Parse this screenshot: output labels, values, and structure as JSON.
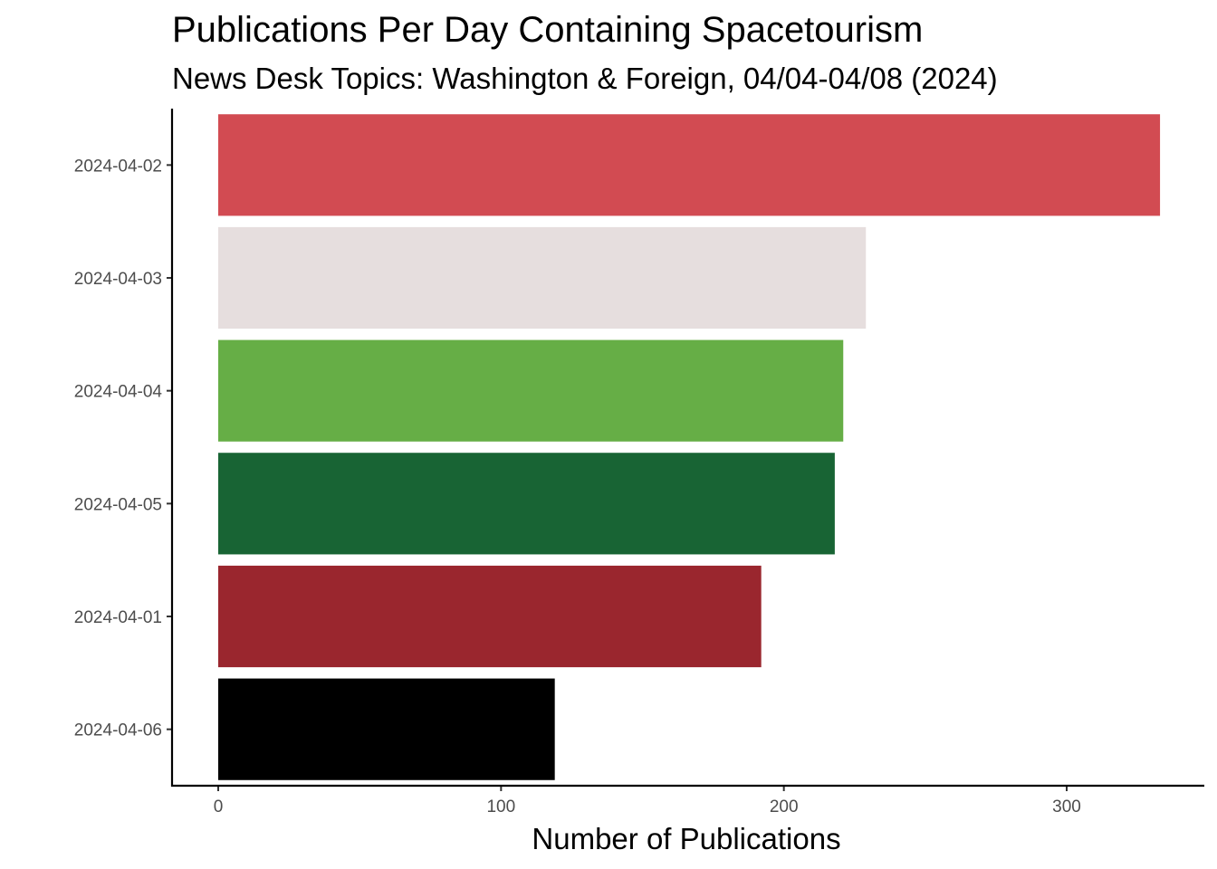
{
  "chart_data": {
    "type": "bar",
    "orientation": "horizontal",
    "title": "Publications Per Day Containing Spacetourism",
    "subtitle": "News Desk Topics: Washington & Foreign, 04/04-04/08 (2024)",
    "xlabel": "Number of Publications",
    "ylabel": "",
    "categories": [
      "2024-04-02",
      "2024-04-03",
      "2024-04-04",
      "2024-04-05",
      "2024-04-01",
      "2024-04-06"
    ],
    "values": [
      333,
      229,
      221,
      218,
      192,
      119
    ],
    "colors": [
      "#D24B52",
      "#E6DEDE",
      "#66AE46",
      "#186434",
      "#9A262E",
      "#000000"
    ],
    "xlim": [
      -16,
      350
    ],
    "xticks": [
      0,
      100,
      200,
      300
    ],
    "grid": false,
    "legend": "none"
  }
}
